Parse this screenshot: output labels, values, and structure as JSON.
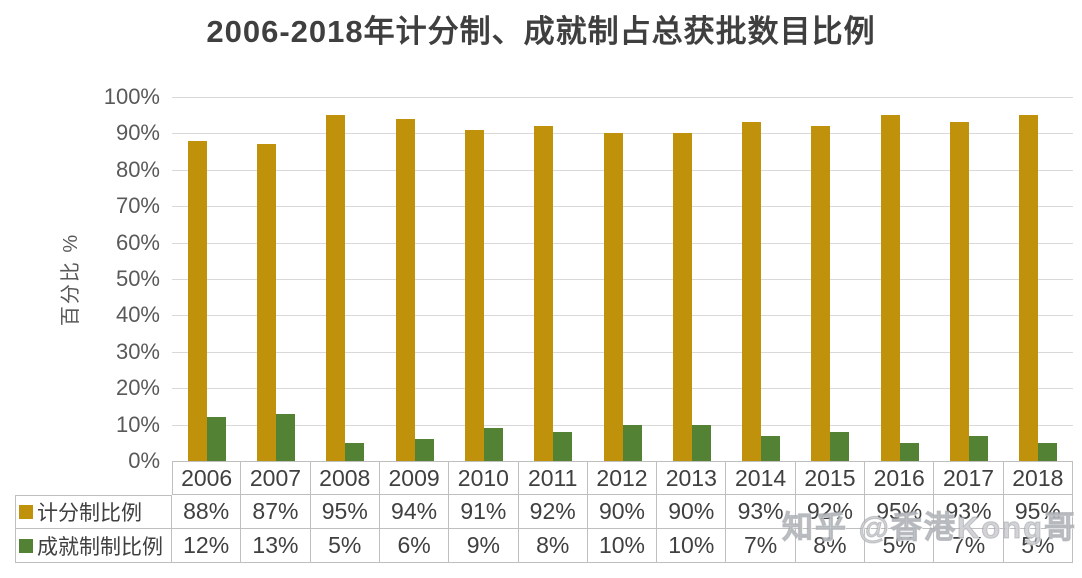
{
  "title": "2006-2018年计分制、成就制占总获批数目比例",
  "watermark": "知乎 @香港Kong哥",
  "colors": {
    "series_gold": "#C0920B",
    "series_green": "#548235",
    "gridline": "#D9D9D9",
    "table_border": "#BFBFBF",
    "axis_text": "#595959",
    "title_text": "#3F3F3F",
    "table_text": "#404040"
  },
  "chart_data": {
    "type": "bar",
    "title": "2006-2018年计分制、成就制占总获批数目比例",
    "xlabel": "",
    "ylabel": "百分比 %",
    "ylim": [
      0,
      100
    ],
    "grid": true,
    "legend_position": "data-table-left",
    "y_ticks": [
      "100%",
      "90%",
      "80%",
      "70%",
      "60%",
      "50%",
      "40%",
      "30%",
      "20%",
      "10%",
      "0%"
    ],
    "categories": [
      "2006",
      "2007",
      "2008",
      "2009",
      "2010",
      "2011",
      "2012",
      "2013",
      "2014",
      "2015",
      "2016",
      "2017",
      "2018"
    ],
    "series": [
      {
        "name": "计分制比例",
        "color": "#C0920B",
        "values": [
          88,
          87,
          95,
          94,
          91,
          92,
          90,
          90,
          93,
          92,
          95,
          93,
          95
        ],
        "value_labels": [
          "88%",
          "87%",
          "95%",
          "94%",
          "91%",
          "92%",
          "90%",
          "90%",
          "93%",
          "92%",
          "95%",
          "93%",
          "95%"
        ]
      },
      {
        "name": "成就制制比例",
        "color": "#548235",
        "values": [
          12,
          13,
          5,
          6,
          9,
          8,
          10,
          10,
          7,
          8,
          5,
          7,
          5
        ],
        "value_labels": [
          "12%",
          "13%",
          "5%",
          "6%",
          "9%",
          "8%",
          "10%",
          "10%",
          "7%",
          "8%",
          "5%",
          "7%",
          "5%"
        ]
      }
    ]
  }
}
